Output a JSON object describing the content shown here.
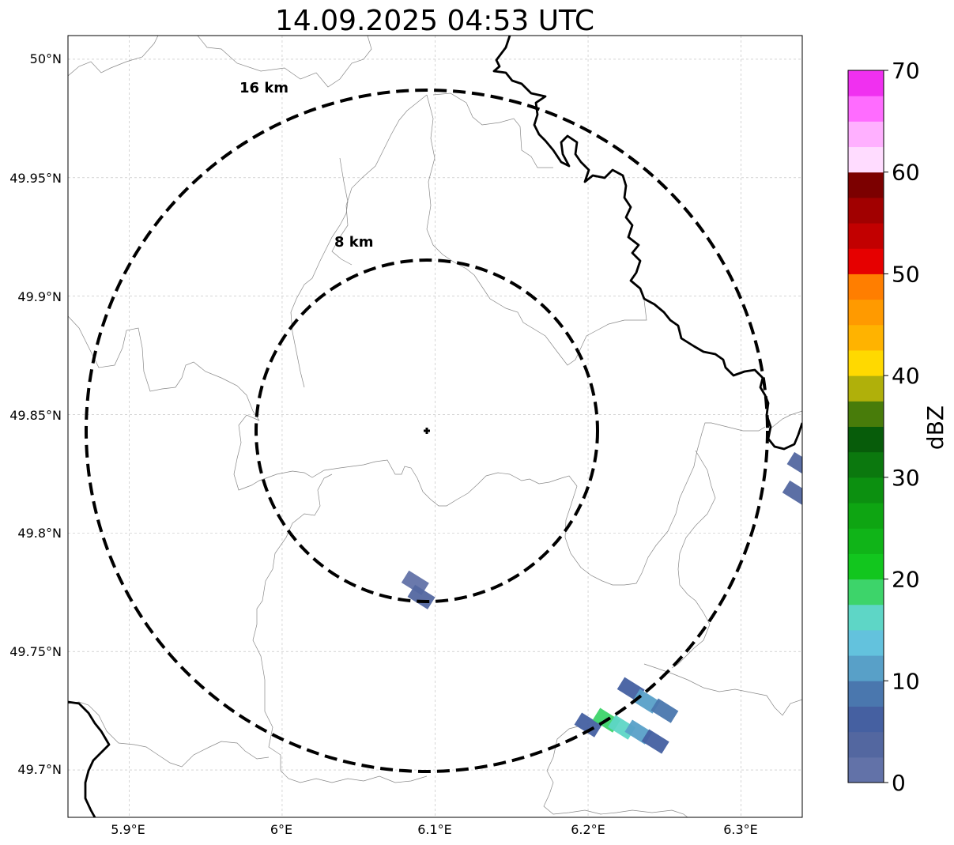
{
  "title": "14.09.2025 04:53 UTC",
  "map": {
    "lon_ticks": [
      "5.9°E",
      "6°E",
      "6.1°E",
      "6.2°E",
      "6.3°E"
    ],
    "lat_ticks": [
      "50°N",
      "49.95°N",
      "49.9°N",
      "49.85°N",
      "49.8°N",
      "49.75°N",
      "49.7°N"
    ],
    "lon_range": [
      5.86,
      6.34
    ],
    "lat_range": [
      49.68,
      50.01
    ],
    "center": {
      "lon": 6.095,
      "lat": 49.843
    },
    "range_rings": [
      {
        "label": "8 km",
        "radius_km": 8
      },
      {
        "label": "16 km",
        "radius_km": 16
      }
    ],
    "grid": true
  },
  "colorbar": {
    "label": "dBZ",
    "ticks": [
      "0",
      "10",
      "20",
      "30",
      "40",
      "50",
      "60",
      "70"
    ],
    "range": [
      0,
      70
    ],
    "step": 2.5,
    "colors": [
      "#6272a8",
      "#5367a0",
      "#4560a1",
      "#4a77ae",
      "#58a0c8",
      "#63c2dd",
      "#5ed6c6",
      "#3dd46a",
      "#12c61e",
      "#10b418",
      "#0ea512",
      "#0c9010",
      "#0b780e",
      "#075c0a",
      "#487c0a",
      "#b0b00a",
      "#ffd900",
      "#ffb300",
      "#ff9a00",
      "#ff7e00",
      "#e60000",
      "#c20000",
      "#a10000",
      "#7c0000",
      "#ffdcff",
      "#ffb0ff",
      "#ff6cff",
      "#f030f0"
    ]
  },
  "echoes": [
    {
      "lon": 6.087,
      "lat": 49.779,
      "dbz": 2
    },
    {
      "lon": 6.091,
      "lat": 49.773,
      "dbz": 3
    },
    {
      "lon": 6.2,
      "lat": 49.719,
      "dbz": 5
    },
    {
      "lon": 6.212,
      "lat": 49.721,
      "dbz": 18
    },
    {
      "lon": 6.222,
      "lat": 49.718,
      "dbz": 15
    },
    {
      "lon": 6.233,
      "lat": 49.716,
      "dbz": 11
    },
    {
      "lon": 6.244,
      "lat": 49.712,
      "dbz": 7
    },
    {
      "lon": 6.228,
      "lat": 49.734,
      "dbz": 6
    },
    {
      "lon": 6.238,
      "lat": 49.729,
      "dbz": 12
    },
    {
      "lon": 6.25,
      "lat": 49.725,
      "dbz": 8
    },
    {
      "lon": 6.336,
      "lat": 49.817,
      "dbz": 3
    },
    {
      "lon": 6.339,
      "lat": 49.829,
      "dbz": 4
    }
  ]
}
